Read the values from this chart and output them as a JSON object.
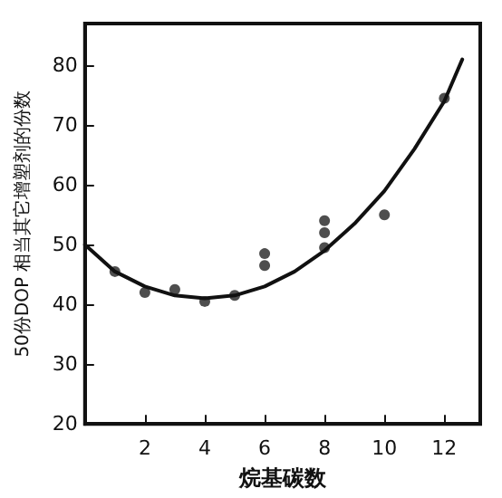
{
  "chart_data": {
    "type": "scatter",
    "xlabel": "烷基碳数",
    "ylabel": "50份DOP 相当其它增塑剂的份数",
    "xlim": [
      0,
      13.2
    ],
    "ylim": [
      20,
      87
    ],
    "xticks": [
      2,
      4,
      6,
      8,
      10,
      12
    ],
    "yticks": [
      20,
      30,
      40,
      50,
      60,
      70,
      80
    ],
    "grid": false,
    "marker": "circle",
    "series": [
      {
        "color": "#222222",
        "x": [
          1,
          2,
          3,
          4,
          5,
          6,
          6,
          8,
          8,
          8,
          10,
          12
        ],
        "values": [
          45.5,
          42,
          42.5,
          40.5,
          41.5,
          48.5,
          46.5,
          54,
          52,
          49.5,
          55,
          74.5
        ]
      },
      {
        "type": "line",
        "color": "#111111",
        "marker": "none",
        "x": [
          0,
          1,
          2,
          3,
          4,
          5,
          6,
          7,
          8,
          9,
          10,
          11,
          12,
          12.6
        ],
        "values": [
          50,
          45.5,
          43,
          41.5,
          41,
          41.5,
          43,
          45.5,
          49,
          53.5,
          59,
          66,
          74,
          81
        ]
      }
    ]
  }
}
